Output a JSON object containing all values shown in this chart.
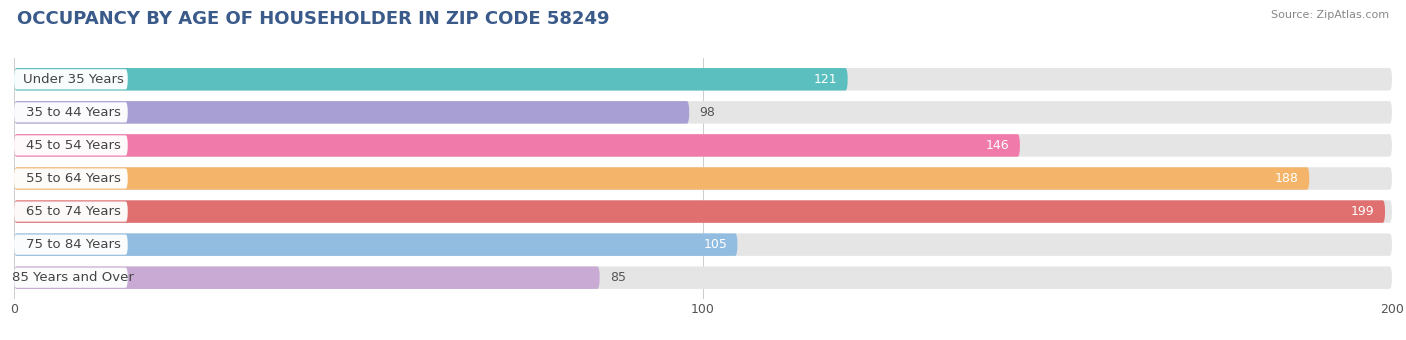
{
  "title": "OCCUPANCY BY AGE OF HOUSEHOLDER IN ZIP CODE 58249",
  "source": "Source: ZipAtlas.com",
  "categories": [
    "Under 35 Years",
    "35 to 44 Years",
    "45 to 54 Years",
    "55 to 64 Years",
    "65 to 74 Years",
    "75 to 84 Years",
    "85 Years and Over"
  ],
  "values": [
    121,
    98,
    146,
    188,
    199,
    105,
    85
  ],
  "bar_colors": [
    "#5bbfc0",
    "#a89fd4",
    "#f07aaa",
    "#f4b56a",
    "#e07070",
    "#92bde0",
    "#c8aad4"
  ],
  "bg_colors": [
    "#e8e8e8",
    "#e8e8e8",
    "#e8e8e8",
    "#e8e8e8",
    "#e8e8e8",
    "#e8e8e8",
    "#e8e8e8"
  ],
  "xlim_max": 200,
  "xticks": [
    0,
    100,
    200
  ],
  "title_fontsize": 13,
  "label_fontsize": 9.5,
  "value_fontsize": 9,
  "background_color": "#ffffff",
  "source_color": "#888888",
  "title_color": "#3a5a8a"
}
